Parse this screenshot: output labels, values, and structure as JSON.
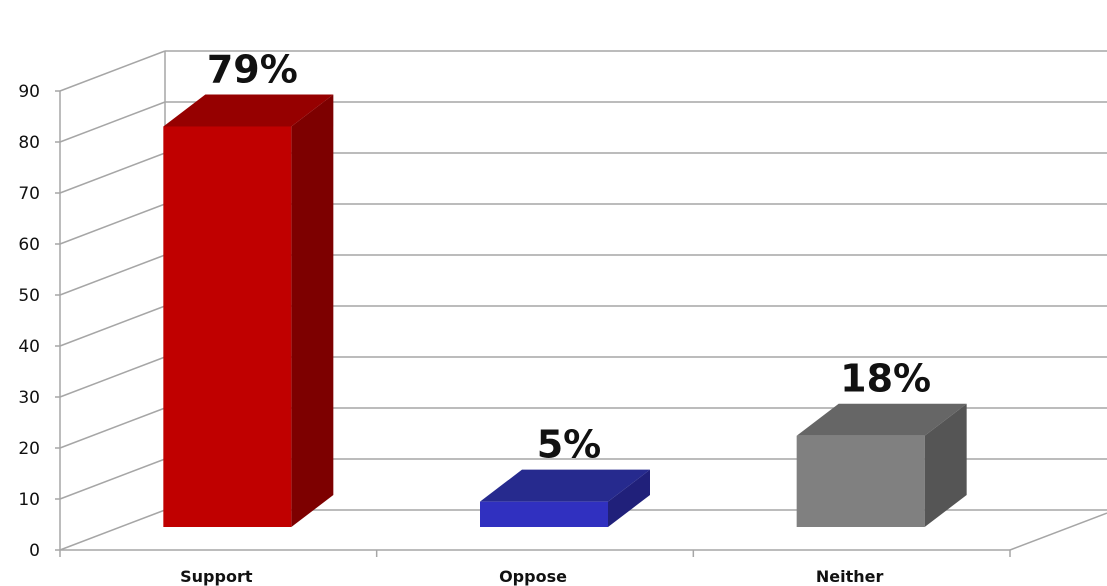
{
  "chart_data": {
    "type": "bar",
    "categories": [
      "Support",
      "Oppose",
      "Neither"
    ],
    "values": [
      79,
      5,
      18
    ],
    "data_labels": [
      "79%",
      "5%",
      "18%"
    ],
    "ylim": [
      0,
      90
    ],
    "y_ticks": [
      "0",
      "10",
      "20",
      "30",
      "40",
      "50",
      "60",
      "70",
      "80",
      "90"
    ],
    "title": "",
    "xlabel": "",
    "ylabel": "",
    "grid": true,
    "legend": "none",
    "style": "3d-column",
    "colors": {
      "Support": {
        "front": "#c00000",
        "top": "#960000",
        "side": "#7d0000"
      },
      "Oppose": {
        "front": "#3030c0",
        "top": "#262a8e",
        "side": "#20207a"
      },
      "Neither": {
        "front": "#808080",
        "top": "#666666",
        "side": "#555555"
      },
      "gridline": "#a6a6a6"
    }
  }
}
